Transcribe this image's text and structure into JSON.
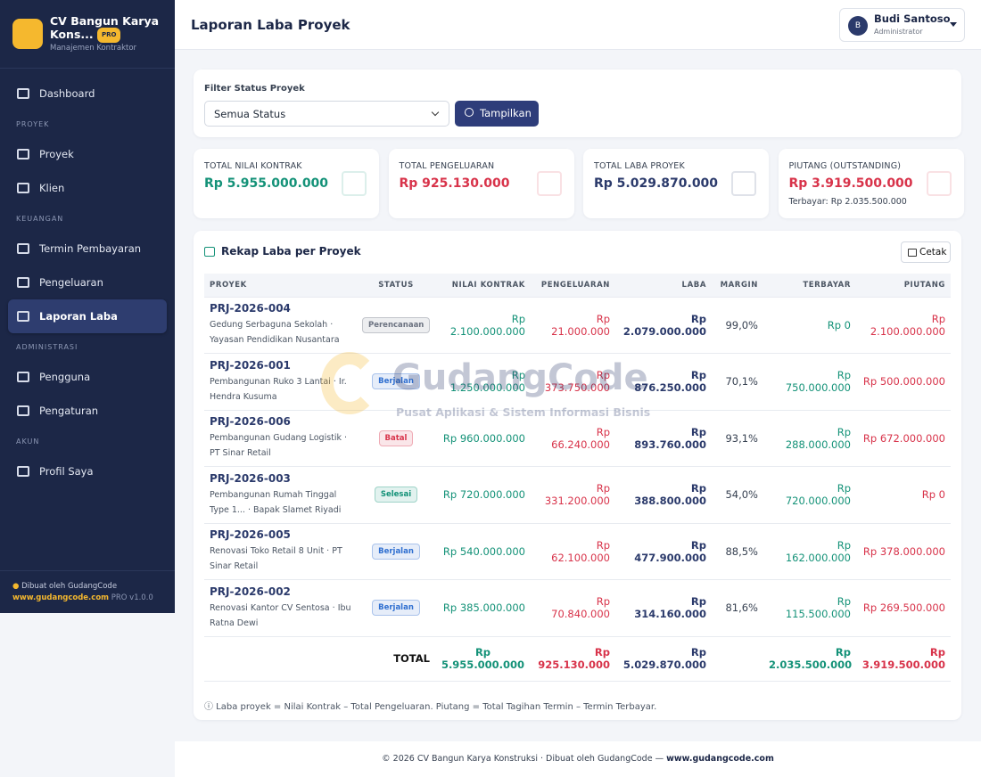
{
  "sidebar": {
    "brand": {
      "name": "CV Bangun Karya Kons...",
      "badge": "PRO",
      "tagline": "Manajemen Kontraktor"
    },
    "top_items": [
      {
        "label": "Dashboard"
      }
    ],
    "sections": [
      {
        "title": "PROYEK",
        "items": [
          {
            "label": "Proyek"
          },
          {
            "label": "Klien"
          }
        ]
      },
      {
        "title": "KEUANGAN",
        "items": [
          {
            "label": "Termin Pembayaran"
          },
          {
            "label": "Pengeluaran"
          },
          {
            "label": "Laporan Laba",
            "active": true
          }
        ]
      },
      {
        "title": "ADMINISTRASI",
        "items": [
          {
            "label": "Pengguna"
          },
          {
            "label": "Pengaturan"
          }
        ]
      },
      {
        "title": "AKUN",
        "items": [
          {
            "label": "Profil Saya"
          }
        ]
      }
    ],
    "footer": {
      "credit": "Dibuat oleh GudangCode",
      "site": "www.gudangcode.com",
      "version": "PRO v1.0.0"
    }
  },
  "header": {
    "title": "Laporan Laba Proyek",
    "user": {
      "initial": "B",
      "name": "Budi Santoso",
      "role": "Administrator"
    }
  },
  "filter": {
    "label": "Filter Status Proyek",
    "select": "Semua Status",
    "button": "Tampilkan"
  },
  "stats": [
    {
      "label": "TOTAL NILAI KONTRAK",
      "value": "Rp 5.955.000.000",
      "color": "#149278"
    },
    {
      "label": "TOTAL PENGELUARAN",
      "value": "Rp 925.130.000",
      "color": "#d8334a"
    },
    {
      "label": "TOTAL LABA PROYEK",
      "value": "Rp 5.029.870.000",
      "color": "#2b3a6b"
    },
    {
      "label": "PIUTANG (OUTSTANDING)",
      "value": "Rp 3.919.500.000",
      "color": "#d8334a",
      "note": "Terbayar: Rp 2.035.500.000"
    }
  ],
  "table": {
    "title": "Rekap Laba per Proyek",
    "print_button": "Cetak",
    "columns": [
      "PROYEK",
      "STATUS",
      "NILAI KONTRAK",
      "PENGELUARAN",
      "LABA",
      "MARGIN",
      "TERBAYAR",
      "PIUTANG"
    ],
    "rows": [
      {
        "code": "PRJ-2026-004",
        "desc": "Gedung Serbaguna Sekolah · Yayasan Pendidikan Nusantara",
        "status": {
          "text": "Perencanaan",
          "color": "#6b7280"
        },
        "nilai": "Rp 2.100.000.000",
        "pengeluaran": "Rp 21.000.000",
        "laba": "Rp 2.079.000.000",
        "margin": "99,0%",
        "terbayar": "Rp 0",
        "piutang": "Rp 2.100.000.000"
      },
      {
        "code": "PRJ-2026-001",
        "desc": "Pembangunan Ruko 3 Lantai · Ir. Hendra Kusuma",
        "status": {
          "text": "Berjalan",
          "color": "#2f6fd0"
        },
        "nilai": "Rp 1.250.000.000",
        "pengeluaran": "Rp 373.750.000",
        "laba": "Rp 876.250.000",
        "margin": "70,1%",
        "terbayar": "Rp 750.000.000",
        "piutang": "Rp 500.000.000"
      },
      {
        "code": "PRJ-2026-006",
        "desc": "Pembangunan Gudang Logistik · PT Sinar Retail",
        "status": {
          "text": "Batal",
          "color": "#d8334a"
        },
        "nilai": "Rp 960.000.000",
        "pengeluaran": "Rp 66.240.000",
        "laba": "Rp 893.760.000",
        "margin": "93,1%",
        "terbayar": "Rp 288.000.000",
        "piutang": "Rp 672.000.000"
      },
      {
        "code": "PRJ-2026-003",
        "desc": "Pembangunan Rumah Tinggal Type 1... · Bapak Slamet Riyadi",
        "status": {
          "text": "Selesai",
          "color": "#149278"
        },
        "nilai": "Rp 720.000.000",
        "pengeluaran": "Rp 331.200.000",
        "laba": "Rp 388.800.000",
        "margin": "54,0%",
        "terbayar": "Rp 720.000.000",
        "piutang": "Rp 0"
      },
      {
        "code": "PRJ-2026-005",
        "desc": "Renovasi Toko Retail 8 Unit · PT Sinar Retail",
        "status": {
          "text": "Berjalan",
          "color": "#2f6fd0"
        },
        "nilai": "Rp 540.000.000",
        "pengeluaran": "Rp 62.100.000",
        "laba": "Rp 477.900.000",
        "margin": "88,5%",
        "terbayar": "Rp 162.000.000",
        "piutang": "Rp 378.000.000"
      },
      {
        "code": "PRJ-2026-002",
        "desc": "Renovasi Kantor CV Sentosa · Ibu Ratna Dewi",
        "status": {
          "text": "Berjalan",
          "color": "#2f6fd0"
        },
        "nilai": "Rp 385.000.000",
        "pengeluaran": "Rp 70.840.000",
        "laba": "Rp 314.160.000",
        "margin": "81,6%",
        "terbayar": "Rp 115.500.000",
        "piutang": "Rp 269.500.000"
      }
    ],
    "total": {
      "label": "TOTAL",
      "nilai": "Rp 5.955.000.000",
      "pengeluaran": "Rp 925.130.000",
      "laba": "Rp 5.029.870.000",
      "terbayar": "Rp 2.035.500.000",
      "piutang": "Rp 3.919.500.000"
    },
    "note": "ⓘ Laba proyek = Nilai Kontrak – Total Pengeluaran. Piutang = Total Tagihan Termin – Termin Terbayar."
  },
  "watermark": {
    "title": "GudangCode",
    "subtitle": "Pusat Aplikasi & Sistem Informasi Bisnis"
  },
  "footer": {
    "text": "© 2026 CV Bangun Karya Konstruksi · Dibuat oleh GudangCode —",
    "link": "www.gudangcode.com"
  }
}
